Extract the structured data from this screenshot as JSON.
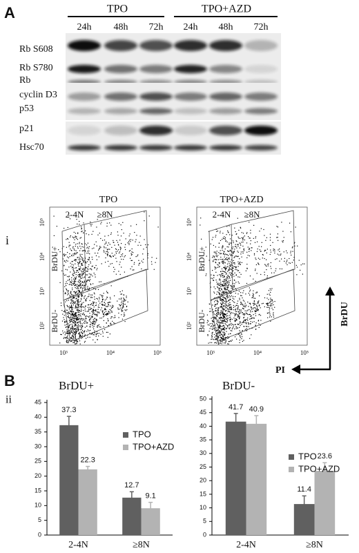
{
  "panel_labels": {
    "a": "A",
    "b": "B"
  },
  "blot": {
    "groups": [
      "TPO",
      "TPO+AZD"
    ],
    "times": [
      "24h",
      "48h",
      "72h",
      "24h",
      "48h",
      "72h"
    ],
    "rows": [
      "Rb S608",
      "Rb S780",
      "Rb",
      "cyclin D3",
      "p53",
      "p21",
      "Hsc70"
    ]
  },
  "flow": {
    "row_label": "i",
    "plots": [
      {
        "title": "TPO"
      },
      {
        "title": "TPO+AZD"
      }
    ],
    "gates": {
      "low": "2-4N",
      "high": "≥8N",
      "pos": "BrDU+",
      "neg": "BrDU-"
    },
    "yticks": [
      "10⁵",
      "10⁴",
      "10³",
      "10²"
    ],
    "xticks": [
      "10³",
      "10⁴",
      "10⁵"
    ],
    "axis_y": "BrDU",
    "axis_x": "PI"
  },
  "bar_row_label": "ii",
  "chart_data": [
    {
      "type": "bar",
      "title": "BrDU+",
      "categories": [
        "2-4N",
        "≥8N"
      ],
      "series": [
        {
          "name": "TPO",
          "color": "#606060",
          "values": [
            37.3,
            12.7
          ],
          "errors": [
            3,
            2
          ]
        },
        {
          "name": "TPO+AZD",
          "color": "#b3b3b3",
          "values": [
            22.3,
            9.1
          ],
          "errors": [
            1,
            2
          ]
        }
      ],
      "ylim": [
        0,
        45
      ],
      "yticks": [
        0,
        5,
        10,
        15,
        20,
        25,
        30,
        35,
        40,
        45
      ]
    },
    {
      "type": "bar",
      "title": "BrDU-",
      "categories": [
        "2-4N",
        "≥8N"
      ],
      "series": [
        {
          "name": "TPO",
          "color": "#606060",
          "values": [
            41.7,
            11.4
          ],
          "errors": [
            3,
            3
          ]
        },
        {
          "name": "TPO+AZD",
          "color": "#b3b3b3",
          "values": [
            40.9,
            23.6
          ],
          "errors": [
            3,
            3
          ]
        }
      ],
      "ylim": [
        0,
        50
      ],
      "yticks": [
        0,
        5,
        10,
        15,
        20,
        25,
        30,
        35,
        40,
        45,
        50
      ]
    }
  ]
}
